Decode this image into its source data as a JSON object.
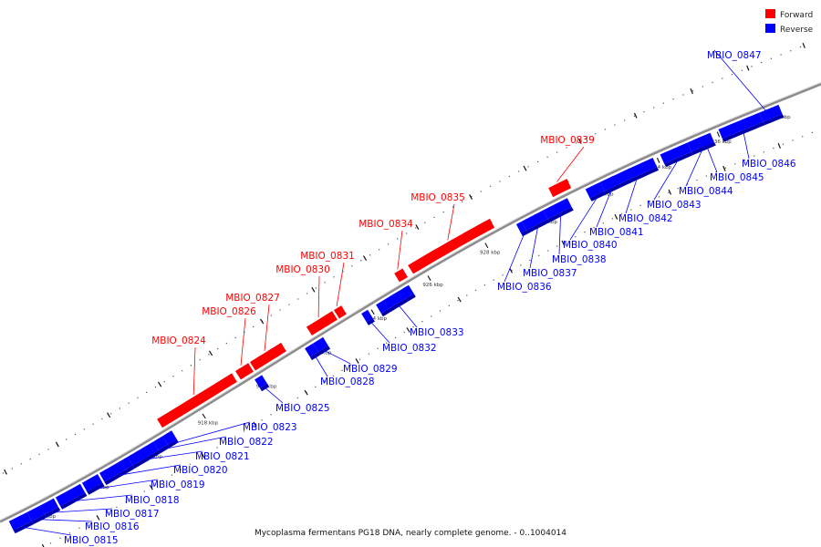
{
  "caption": "Mycoplasma fermentans PG18 DNA, nearly complete genome. - 0..1004014",
  "legend": [
    {
      "label": "Forward",
      "color": "#ff0000"
    },
    {
      "label": "Reverse",
      "color": "#0000ff"
    }
  ],
  "colors": {
    "forward": "#ff0000",
    "reverse": "#0000ff",
    "backbone": "#8c8c8c"
  },
  "ticks": [
    {
      "label": "912 kbp"
    },
    {
      "label": "914 kbp"
    },
    {
      "label": "916 kbp"
    },
    {
      "label": "918 kbp"
    },
    {
      "label": "920 kbp"
    },
    {
      "label": "922 kbp"
    },
    {
      "label": "924 kbp"
    },
    {
      "label": "926 kbp"
    },
    {
      "label": "928 kbp"
    },
    {
      "label": "930 kbp"
    },
    {
      "label": "932 kbp"
    },
    {
      "label": "934 kbp"
    },
    {
      "label": "936 kbp"
    },
    {
      "label": "938 kbp"
    }
  ],
  "genes": [
    {
      "name": "MBIO_0815",
      "strand": "reverse"
    },
    {
      "name": "MBIO_0816",
      "strand": "reverse"
    },
    {
      "name": "MBIO_0817",
      "strand": "reverse"
    },
    {
      "name": "MBIO_0818",
      "strand": "reverse"
    },
    {
      "name": "MBIO_0819",
      "strand": "reverse"
    },
    {
      "name": "MBIO_0820",
      "strand": "reverse"
    },
    {
      "name": "MBIO_0821",
      "strand": "reverse"
    },
    {
      "name": "MBIO_0822",
      "strand": "reverse"
    },
    {
      "name": "MBIO_0823",
      "strand": "reverse"
    },
    {
      "name": "MBIO_0824",
      "strand": "forward"
    },
    {
      "name": "MBIO_0825",
      "strand": "reverse"
    },
    {
      "name": "MBIO_0826",
      "strand": "forward"
    },
    {
      "name": "MBIO_0827",
      "strand": "forward"
    },
    {
      "name": "MBIO_0828",
      "strand": "reverse"
    },
    {
      "name": "MBIO_0829",
      "strand": "reverse"
    },
    {
      "name": "MBIO_0830",
      "strand": "forward"
    },
    {
      "name": "MBIO_0831",
      "strand": "forward"
    },
    {
      "name": "MBIO_0832",
      "strand": "reverse"
    },
    {
      "name": "MBIO_0833",
      "strand": "reverse"
    },
    {
      "name": "MBIO_0834",
      "strand": "forward"
    },
    {
      "name": "MBIO_0835",
      "strand": "forward"
    },
    {
      "name": "MBIO_0836",
      "strand": "reverse"
    },
    {
      "name": "MBIO_0837",
      "strand": "reverse"
    },
    {
      "name": "MBIO_0838",
      "strand": "reverse"
    },
    {
      "name": "MBIO_0839",
      "strand": "forward"
    },
    {
      "name": "MBIO_0840",
      "strand": "reverse"
    },
    {
      "name": "MBIO_0841",
      "strand": "reverse"
    },
    {
      "name": "MBIO_0842",
      "strand": "reverse"
    },
    {
      "name": "MBIO_0843",
      "strand": "reverse"
    },
    {
      "name": "MBIO_0844",
      "strand": "reverse"
    },
    {
      "name": "MBIO_0845",
      "strand": "reverse"
    },
    {
      "name": "MBIO_0846",
      "strand": "reverse"
    },
    {
      "name": "MBIO_0847",
      "strand": "reverse"
    }
  ]
}
